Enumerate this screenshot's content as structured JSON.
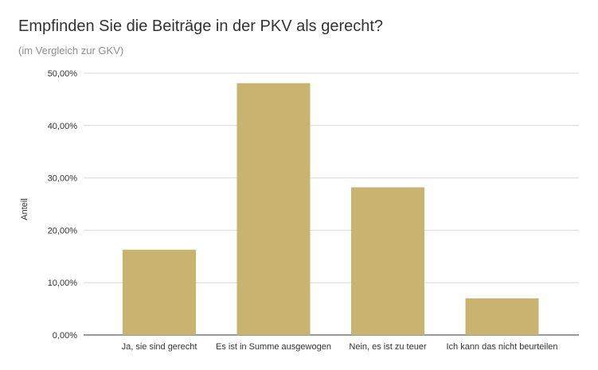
{
  "chart_data": {
    "type": "bar",
    "title": "Empfinden Sie die Beiträge in der PKV als gerecht?",
    "subtitle": "(im Vergleich zur GKV)",
    "xlabel": "",
    "ylabel": "Anteil",
    "categories": [
      "Ja, sie sind gerecht",
      "Es ist in Summe ausgewogen",
      "Nein, es ist zu teuer",
      "Ich kann das nicht beurteilen"
    ],
    "values": [
      16.3,
      48.1,
      28.2,
      7.0
    ],
    "ylim": [
      0,
      50
    ],
    "yticks": [
      "0,00%",
      "10,00%",
      "20,00%",
      "30,00%",
      "40,00%",
      "50,00%"
    ],
    "bar_color": "#c8b370",
    "grid": true,
    "legend": "none"
  }
}
